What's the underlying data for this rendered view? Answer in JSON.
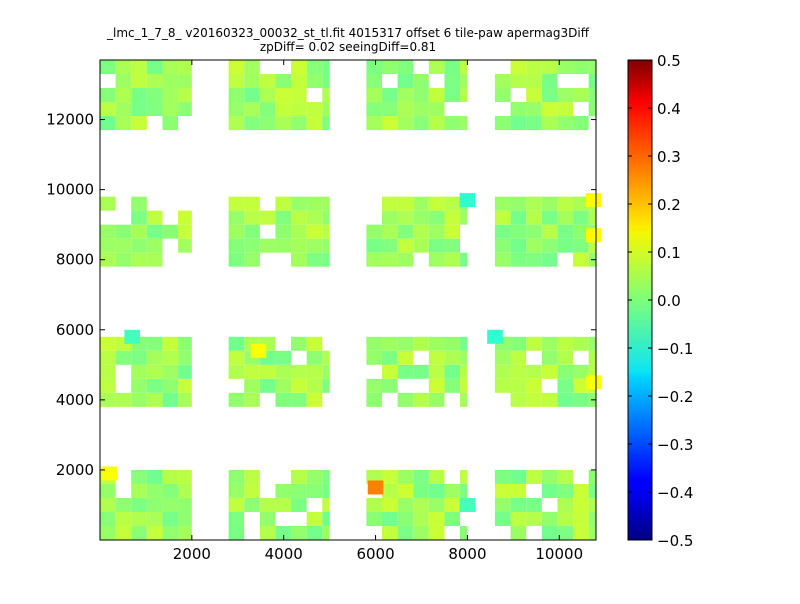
{
  "chart_data": {
    "type": "heatmap",
    "title": "_lmc_1_7_8_ v20160323_00032_st_tl.fit 4015317 offset 6 tile-paw apermag3Diff",
    "subtitle": "zpDiff= 0.02 seeingDiff=0.81",
    "xlabel": "",
    "ylabel": "",
    "xlim": [
      0,
      10800
    ],
    "ylim": [
      0,
      13700
    ],
    "x_ticks": [
      2000,
      4000,
      6000,
      8000,
      10000
    ],
    "y_ticks": [
      2000,
      4000,
      6000,
      8000,
      10000,
      12000
    ],
    "grid": false,
    "colorbar": {
      "colormap": "jet",
      "min": -0.5,
      "max": 0.5,
      "ticks": [
        0.5,
        0.4,
        0.3,
        0.2,
        0.1,
        0.0,
        -0.1,
        -0.2,
        -0.3,
        -0.4,
        -0.5
      ],
      "tick_labels": [
        "0.5",
        "0.4",
        "0.3",
        "0.2",
        "0.1",
        "0.0",
        "−0.1",
        "−0.2",
        "−0.3",
        "−0.4",
        "−0.5"
      ]
    },
    "cell_size": [
      340,
      400
    ],
    "cell_value_range": [
      -0.1,
      0.25
    ],
    "cell_value_typical": 0.03,
    "notable_cells": [
      {
        "x": 6000,
        "y": 1500,
        "value": 0.25
      },
      {
        "x": 3450,
        "y": 5400,
        "value": 0.12
      },
      {
        "x": 200,
        "y": 1900,
        "value": 0.12
      },
      {
        "x": 10750,
        "y": 9700,
        "value": 0.13
      },
      {
        "x": 10750,
        "y": 8700,
        "value": 0.13
      },
      {
        "x": 8000,
        "y": 9700,
        "value": -0.08
      },
      {
        "x": 8600,
        "y": 5800,
        "value": -0.08
      },
      {
        "x": 700,
        "y": 5800,
        "value": -0.06
      },
      {
        "x": 8000,
        "y": 1000,
        "value": -0.06
      },
      {
        "x": 10750,
        "y": 4500,
        "value": 0.12
      }
    ],
    "tile_blocks": [
      {
        "x": [
          0,
          2000
        ],
        "y": [
          11700,
          13700
        ]
      },
      {
        "x": [
          2800,
          5000
        ],
        "y": [
          11700,
          13700
        ]
      },
      {
        "x": [
          5800,
          8000
        ],
        "y": [
          11700,
          13700
        ]
      },
      {
        "x": [
          8600,
          10800
        ],
        "y": [
          11700,
          13700
        ]
      },
      {
        "x": [
          0,
          2000
        ],
        "y": [
          7800,
          9800
        ]
      },
      {
        "x": [
          2800,
          5000
        ],
        "y": [
          7800,
          9800
        ]
      },
      {
        "x": [
          5800,
          8000
        ],
        "y": [
          7800,
          9800
        ]
      },
      {
        "x": [
          8600,
          10800
        ],
        "y": [
          7800,
          9800
        ]
      },
      {
        "x": [
          0,
          2000
        ],
        "y": [
          3800,
          5800
        ]
      },
      {
        "x": [
          2800,
          5000
        ],
        "y": [
          3800,
          5800
        ]
      },
      {
        "x": [
          5800,
          8000
        ],
        "y": [
          3800,
          5800
        ]
      },
      {
        "x": [
          8600,
          10800
        ],
        "y": [
          3800,
          5800
        ]
      },
      {
        "x": [
          0,
          2000
        ],
        "y": [
          0,
          2000
        ]
      },
      {
        "x": [
          2800,
          5000
        ],
        "y": [
          0,
          2000
        ]
      },
      {
        "x": [
          5800,
          8000
        ],
        "y": [
          0,
          2000
        ]
      },
      {
        "x": [
          8600,
          10800
        ],
        "y": [
          0,
          2000
        ]
      }
    ]
  }
}
